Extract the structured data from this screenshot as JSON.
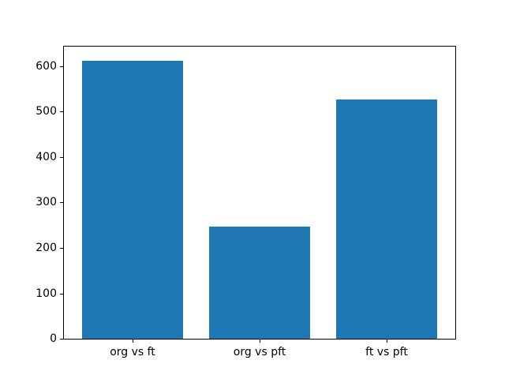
{
  "chart_data": {
    "type": "bar",
    "title": "",
    "xlabel": "",
    "ylabel": "",
    "categories": [
      "org vs ft",
      "org vs pft",
      "ft vs pft"
    ],
    "values": [
      612,
      247,
      526
    ],
    "yticks": [
      0,
      100,
      200,
      300,
      400,
      500,
      600
    ],
    "ylim": [
      0,
      643
    ],
    "xlim": [
      -0.54,
      2.54
    ],
    "bar_width": 0.8,
    "bar_color": "#1f77b4",
    "background_color": "#ffffff",
    "spine_color": "#000000",
    "tick_label_color": "#000000",
    "grid": false,
    "legend": false
  }
}
